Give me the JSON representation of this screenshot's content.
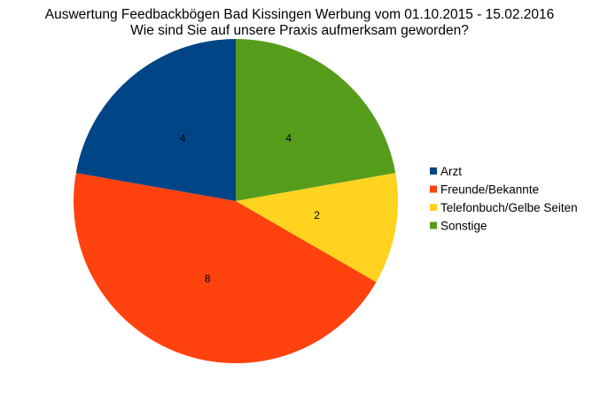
{
  "chart_data": {
    "type": "pie",
    "title": "Auswertung Feedbackbögen Bad Kissingen Werbung vom 01.10.2015 - 15.02.2016",
    "subtitle": "Wie sind Sie auf unsere Praxis aufmerksam geworden?",
    "categories": [
      "Arzt",
      "Freunde/Bekannte",
      "Telefonbuch/Gelbe Seiten",
      "Sonstige"
    ],
    "values": [
      4,
      8,
      2,
      4
    ],
    "colors": [
      "#004586",
      "#ff420e",
      "#ffd320",
      "#579d1c"
    ],
    "data_labels": [
      "4",
      "8",
      "2",
      "4"
    ],
    "legend_position": "right",
    "slice_order_clockwise_from_top": [
      3,
      2,
      1,
      0
    ]
  }
}
